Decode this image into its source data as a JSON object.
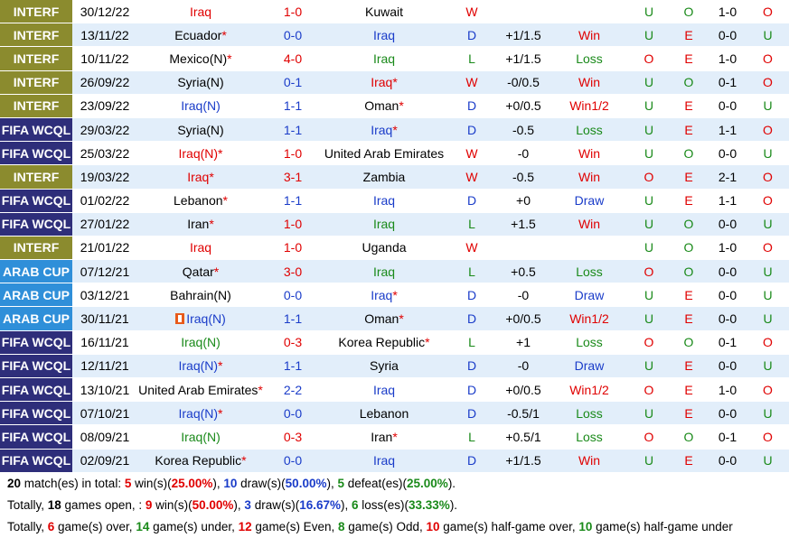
{
  "matches": [
    {
      "comp": "INTERF",
      "ctype": "interf",
      "date": "30/12/22",
      "home": "Iraq",
      "home_color": "red",
      "home_star": false,
      "score": "1-0",
      "score_color": "red",
      "away": "Kuwait",
      "away_color": "black",
      "away_star": false,
      "wdl": "W",
      "hcap": "",
      "result": "",
      "ou": "U",
      "ou_c": "green",
      "oe": "O",
      "oe_c": "green",
      "ht": "1-0",
      "hto": "O",
      "hto_c": "red"
    },
    {
      "comp": "INTERF",
      "ctype": "interf",
      "date": "13/11/22",
      "home": "Ecuador",
      "home_color": "black",
      "home_star": true,
      "score": "0-0",
      "score_color": "blue",
      "away": "Iraq",
      "away_color": "blue",
      "away_star": false,
      "wdl": "D",
      "hcap": "+1/1.5",
      "result": "Win",
      "ou": "U",
      "ou_c": "green",
      "oe": "E",
      "oe_c": "red",
      "ht": "0-0",
      "hto": "U",
      "hto_c": "green"
    },
    {
      "comp": "INTERF",
      "ctype": "interf",
      "date": "10/11/22",
      "home": "Mexico(N)",
      "home_color": "black",
      "home_star": true,
      "score": "4-0",
      "score_color": "red",
      "away": "Iraq",
      "away_color": "green",
      "away_star": false,
      "wdl": "L",
      "hcap": "+1/1.5",
      "result": "Loss",
      "ou": "O",
      "ou_c": "red",
      "oe": "E",
      "oe_c": "red",
      "ht": "1-0",
      "hto": "O",
      "hto_c": "red"
    },
    {
      "comp": "INTERF",
      "ctype": "interf",
      "date": "26/09/22",
      "home": "Syria(N)",
      "home_color": "black",
      "home_star": false,
      "score": "0-1",
      "score_color": "blue",
      "away": "Iraq",
      "away_color": "red",
      "away_star": true,
      "wdl": "W",
      "hcap": "-0/0.5",
      "result": "Win",
      "ou": "U",
      "ou_c": "green",
      "oe": "O",
      "oe_c": "green",
      "ht": "0-1",
      "hto": "O",
      "hto_c": "red"
    },
    {
      "comp": "INTERF",
      "ctype": "interf",
      "date": "23/09/22",
      "home": "Iraq(N)",
      "home_color": "blue",
      "home_star": false,
      "score": "1-1",
      "score_color": "blue",
      "away": "Oman",
      "away_color": "black",
      "away_star": true,
      "wdl": "D",
      "hcap": "+0/0.5",
      "result": "Win1/2",
      "ou": "U",
      "ou_c": "green",
      "oe": "E",
      "oe_c": "red",
      "ht": "0-0",
      "hto": "U",
      "hto_c": "green"
    },
    {
      "comp": "FIFA WCQL",
      "ctype": "fifa",
      "date": "29/03/22",
      "home": "Syria(N)",
      "home_color": "black",
      "home_star": false,
      "score": "1-1",
      "score_color": "blue",
      "away": "Iraq",
      "away_color": "blue",
      "away_star": true,
      "wdl": "D",
      "hcap": "-0.5",
      "result": "Loss",
      "ou": "U",
      "ou_c": "green",
      "oe": "E",
      "oe_c": "red",
      "ht": "1-1",
      "hto": "O",
      "hto_c": "red"
    },
    {
      "comp": "FIFA WCQL",
      "ctype": "fifa",
      "date": "25/03/22",
      "home": "Iraq(N)",
      "home_color": "red",
      "home_star": true,
      "score": "1-0",
      "score_color": "red",
      "away": "United Arab Emirates",
      "away_color": "black",
      "away_star": false,
      "wdl": "W",
      "hcap": "-0",
      "result": "Win",
      "ou": "U",
      "ou_c": "green",
      "oe": "O",
      "oe_c": "green",
      "ht": "0-0",
      "hto": "U",
      "hto_c": "green"
    },
    {
      "comp": "INTERF",
      "ctype": "interf",
      "date": "19/03/22",
      "home": "Iraq",
      "home_color": "red",
      "home_star": true,
      "score": "3-1",
      "score_color": "red",
      "away": "Zambia",
      "away_color": "black",
      "away_star": false,
      "wdl": "W",
      "hcap": "-0.5",
      "result": "Win",
      "ou": "O",
      "ou_c": "red",
      "oe": "E",
      "oe_c": "red",
      "ht": "2-1",
      "hto": "O",
      "hto_c": "red"
    },
    {
      "comp": "FIFA WCQL",
      "ctype": "fifa",
      "date": "01/02/22",
      "home": "Lebanon",
      "home_color": "black",
      "home_star": true,
      "score": "1-1",
      "score_color": "blue",
      "away": "Iraq",
      "away_color": "blue",
      "away_star": false,
      "wdl": "D",
      "hcap": "+0",
      "result": "Draw",
      "ou": "U",
      "ou_c": "green",
      "oe": "E",
      "oe_c": "red",
      "ht": "1-1",
      "hto": "O",
      "hto_c": "red"
    },
    {
      "comp": "FIFA WCQL",
      "ctype": "fifa",
      "date": "27/01/22",
      "home": "Iran",
      "home_color": "black",
      "home_star": true,
      "score": "1-0",
      "score_color": "red",
      "away": "Iraq",
      "away_color": "green",
      "away_star": false,
      "wdl": "L",
      "hcap": "+1.5",
      "result": "Win",
      "ou": "U",
      "ou_c": "green",
      "oe": "O",
      "oe_c": "green",
      "ht": "0-0",
      "hto": "U",
      "hto_c": "green"
    },
    {
      "comp": "INTERF",
      "ctype": "interf",
      "date": "21/01/22",
      "home": "Iraq",
      "home_color": "red",
      "home_star": false,
      "score": "1-0",
      "score_color": "red",
      "away": "Uganda",
      "away_color": "black",
      "away_star": false,
      "wdl": "W",
      "hcap": "",
      "result": "",
      "ou": "U",
      "ou_c": "green",
      "oe": "O",
      "oe_c": "green",
      "ht": "1-0",
      "hto": "O",
      "hto_c": "red"
    },
    {
      "comp": "ARAB CUP",
      "ctype": "arab",
      "date": "07/12/21",
      "home": "Qatar",
      "home_color": "black",
      "home_star": true,
      "score": "3-0",
      "score_color": "red",
      "away": "Iraq",
      "away_color": "green",
      "away_star": false,
      "wdl": "L",
      "hcap": "+0.5",
      "result": "Loss",
      "ou": "O",
      "ou_c": "red",
      "oe": "O",
      "oe_c": "green",
      "ht": "0-0",
      "hto": "U",
      "hto_c": "green"
    },
    {
      "comp": "ARAB CUP",
      "ctype": "arab",
      "date": "03/12/21",
      "home": "Bahrain(N)",
      "home_color": "black",
      "home_star": false,
      "score": "0-0",
      "score_color": "blue",
      "away": "Iraq",
      "away_color": "blue",
      "away_star": true,
      "wdl": "D",
      "hcap": "-0",
      "result": "Draw",
      "ou": "U",
      "ou_c": "green",
      "oe": "E",
      "oe_c": "red",
      "ht": "0-0",
      "hto": "U",
      "hto_c": "green"
    },
    {
      "comp": "ARAB CUP",
      "ctype": "arab",
      "date": "30/11/21",
      "home": "Iraq(N)",
      "home_color": "blue",
      "home_star": false,
      "home_flag": true,
      "score": "1-1",
      "score_color": "blue",
      "away": "Oman",
      "away_color": "black",
      "away_star": true,
      "wdl": "D",
      "hcap": "+0/0.5",
      "result": "Win1/2",
      "ou": "U",
      "ou_c": "green",
      "oe": "E",
      "oe_c": "red",
      "ht": "0-0",
      "hto": "U",
      "hto_c": "green"
    },
    {
      "comp": "FIFA WCQL",
      "ctype": "fifa",
      "date": "16/11/21",
      "home": "Iraq(N)",
      "home_color": "green",
      "home_star": false,
      "score": "0-3",
      "score_color": "red",
      "away": "Korea Republic",
      "away_color": "black",
      "away_star": true,
      "wdl": "L",
      "hcap": "+1",
      "result": "Loss",
      "ou": "O",
      "ou_c": "red",
      "oe": "O",
      "oe_c": "green",
      "ht": "0-1",
      "hto": "O",
      "hto_c": "red"
    },
    {
      "comp": "FIFA WCQL",
      "ctype": "fifa",
      "date": "12/11/21",
      "home": "Iraq(N)",
      "home_color": "blue",
      "home_star": true,
      "score": "1-1",
      "score_color": "blue",
      "away": "Syria",
      "away_color": "black",
      "away_star": false,
      "wdl": "D",
      "hcap": "-0",
      "result": "Draw",
      "ou": "U",
      "ou_c": "green",
      "oe": "E",
      "oe_c": "red",
      "ht": "0-0",
      "hto": "U",
      "hto_c": "green"
    },
    {
      "comp": "FIFA WCQL",
      "ctype": "fifa",
      "date": "13/10/21",
      "home": "United Arab Emirates",
      "home_color": "black",
      "home_star": true,
      "score": "2-2",
      "score_color": "blue",
      "away": "Iraq",
      "away_color": "blue",
      "away_star": false,
      "wdl": "D",
      "hcap": "+0/0.5",
      "result": "Win1/2",
      "ou": "O",
      "ou_c": "red",
      "oe": "E",
      "oe_c": "red",
      "ht": "1-0",
      "hto": "O",
      "hto_c": "red"
    },
    {
      "comp": "FIFA WCQL",
      "ctype": "fifa",
      "date": "07/10/21",
      "home": "Iraq(N)",
      "home_color": "blue",
      "home_star": true,
      "score": "0-0",
      "score_color": "blue",
      "away": "Lebanon",
      "away_color": "black",
      "away_star": false,
      "wdl": "D",
      "hcap": "-0.5/1",
      "result": "Loss",
      "ou": "U",
      "ou_c": "green",
      "oe": "E",
      "oe_c": "red",
      "ht": "0-0",
      "hto": "U",
      "hto_c": "green"
    },
    {
      "comp": "FIFA WCQL",
      "ctype": "fifa",
      "date": "08/09/21",
      "home": "Iraq(N)",
      "home_color": "green",
      "home_star": false,
      "score": "0-3",
      "score_color": "red",
      "away": "Iran",
      "away_color": "black",
      "away_star": true,
      "wdl": "L",
      "hcap": "+0.5/1",
      "result": "Loss",
      "ou": "O",
      "ou_c": "red",
      "oe": "O",
      "oe_c": "green",
      "ht": "0-1",
      "hto": "O",
      "hto_c": "red"
    },
    {
      "comp": "FIFA WCQL",
      "ctype": "fifa",
      "date": "02/09/21",
      "home": "Korea Republic",
      "home_color": "black",
      "home_star": true,
      "score": "0-0",
      "score_color": "blue",
      "away": "Iraq",
      "away_color": "blue",
      "away_star": false,
      "wdl": "D",
      "hcap": "+1/1.5",
      "result": "Win",
      "ou": "U",
      "ou_c": "green",
      "oe": "E",
      "oe_c": "red",
      "ht": "0-0",
      "hto": "U",
      "hto_c": "green"
    }
  ],
  "summary": {
    "line1": {
      "total": "20",
      "t1": " match(es) in total: ",
      "wins": "5",
      "t2": " win(s)(",
      "win_pct": "25.00%",
      "t3": "), ",
      "draws": "10",
      "t4": " draw(s)(",
      "draw_pct": "50.00%",
      "t5": "), ",
      "defeats": "5",
      "t6": " defeat(es)(",
      "defeat_pct": "25.00%",
      "t7": ")."
    },
    "line2": {
      "t0": "Totally, ",
      "open": "18",
      "t1": " games open, : ",
      "wins": "9",
      "t2": " win(s)(",
      "win_pct": "50.00%",
      "t3": "), ",
      "draws": "3",
      "t4": " draw(s)(",
      "draw_pct": "16.67%",
      "t5": "), ",
      "losses": "6",
      "t6": " loss(es)(",
      "loss_pct": "33.33%",
      "t7": ")."
    },
    "line3": {
      "t0": "Totally, ",
      "over": "6",
      "t1": " game(s) over, ",
      "under": "14",
      "t2": " game(s) under, ",
      "even": "12",
      "t3": " game(s) Even, ",
      "odd": "8",
      "t4": " game(s) Odd, ",
      "htover": "10",
      "t5": " game(s) half-game over, ",
      "htunder": "10",
      "t6": " game(s) half-game under"
    }
  },
  "colors": {
    "interf": "#8b8b2e",
    "fifa": "#2e2e7a",
    "arab": "#2f8fd9",
    "row_alt": "#e2eefa",
    "red": "#e00000",
    "blue": "#1a3cc9",
    "green": "#1a8a1a"
  }
}
